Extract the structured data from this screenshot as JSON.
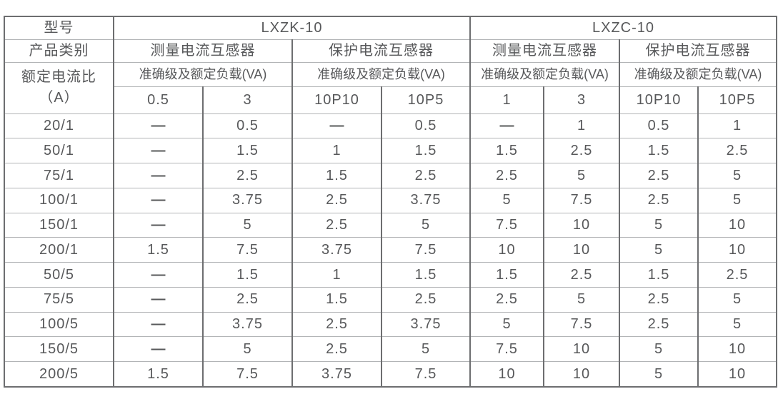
{
  "colors": {
    "background": "#ffffff",
    "text": "#57585a",
    "vertical_border": "#6d6e70",
    "horizontal_border": "#b2b4b6"
  },
  "table": {
    "corner": {
      "model_label": "型号",
      "category_label": "产品类别",
      "ratio_label": "额定电流比",
      "ratio_unit": "（A）"
    },
    "groups": [
      {
        "model": "LXZK-10",
        "subgroups": [
          {
            "label": "测量电流互感器",
            "load_label": "准确级及额定负载(VA)",
            "classes": [
              "0.5",
              "3"
            ]
          },
          {
            "label": "保护电流互感器",
            "load_label": "准确级及额定负载(VA)",
            "classes": [
              "10P10",
              "10P5"
            ]
          }
        ]
      },
      {
        "model": "LXZC-10",
        "subgroups": [
          {
            "label": "测量电流互感器",
            "load_label": "准确级及额定负载(VA)",
            "classes": [
              "1",
              "3"
            ]
          },
          {
            "label": "保护电流互感器",
            "load_label": "准确级及额定负载(VA)",
            "classes": [
              "10P10",
              "10P5"
            ]
          }
        ]
      }
    ],
    "rows": [
      {
        "ratio": "20/1",
        "values": [
          "—",
          "0.5",
          "—",
          "0.5",
          "—",
          "1",
          "0.5",
          "1"
        ]
      },
      {
        "ratio": "50/1",
        "values": [
          "—",
          "1.5",
          "1",
          "1.5",
          "1.5",
          "2.5",
          "1.5",
          "2.5"
        ]
      },
      {
        "ratio": "75/1",
        "values": [
          "—",
          "2.5",
          "1.5",
          "2.5",
          "2.5",
          "5",
          "2.5",
          "5"
        ]
      },
      {
        "ratio": "100/1",
        "values": [
          "—",
          "3.75",
          "2.5",
          "3.75",
          "5",
          "7.5",
          "2.5",
          "5"
        ]
      },
      {
        "ratio": "150/1",
        "values": [
          "—",
          "5",
          "2.5",
          "5",
          "7.5",
          "10",
          "5",
          "10"
        ]
      },
      {
        "ratio": "200/1",
        "values": [
          "1.5",
          "7.5",
          "3.75",
          "7.5",
          "10",
          "10",
          "5",
          "10"
        ]
      },
      {
        "ratio": "50/5",
        "values": [
          "—",
          "1.5",
          "1",
          "1.5",
          "1.5",
          "2.5",
          "1.5",
          "2.5"
        ]
      },
      {
        "ratio": "75/5",
        "values": [
          "—",
          "2.5",
          "1.5",
          "2.5",
          "2.5",
          "5",
          "2.5",
          "5"
        ]
      },
      {
        "ratio": "100/5",
        "values": [
          "—",
          "3.75",
          "2.5",
          "3.75",
          "5",
          "7.5",
          "2.5",
          "5"
        ]
      },
      {
        "ratio": "150/5",
        "values": [
          "—",
          "5",
          "2.5",
          "5",
          "7.5",
          "10",
          "5",
          "10"
        ]
      },
      {
        "ratio": "200/5",
        "values": [
          "1.5",
          "7.5",
          "3.75",
          "7.5",
          "10",
          "10",
          "5",
          "10"
        ]
      }
    ]
  }
}
